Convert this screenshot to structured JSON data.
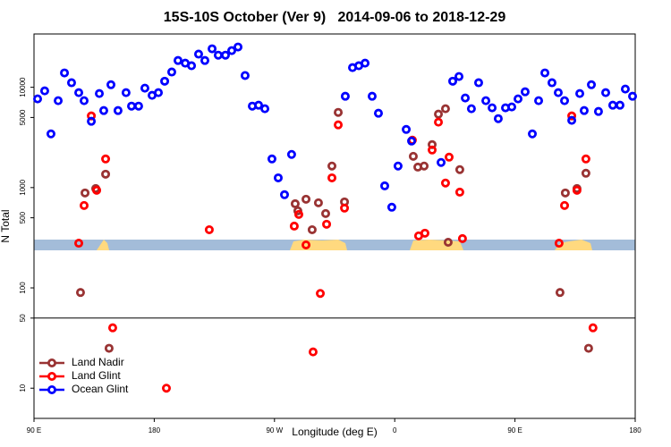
{
  "chart_data": {
    "type": "scatter",
    "title": "15S-10S October (Ver 9)   2014-09-06 to 2018-12-29",
    "xlabel": "Longitude (deg E)",
    "ylabel": "N Total",
    "xlim": [
      90,
      540
    ],
    "xticks": [
      {
        "value": 90,
        "label": "90 E"
      },
      180,
      {
        "value": 270,
        "label": "90 W"
      },
      {
        "value": 360,
        "label": "0"
      },
      {
        "value": 450,
        "label": "90 E"
      },
      {
        "value": 540,
        "label": "180"
      }
    ],
    "ylim": [
      5,
      34000
    ],
    "yscale": "log",
    "yticks": [
      10,
      50,
      100,
      500,
      1000,
      5000,
      10000
    ],
    "hline": 50,
    "legend": "lower left",
    "series": [
      {
        "name": "Land Nadir",
        "color": "#993333",
        "x": [
          124.8,
          128.2,
          136.2,
          143.6,
          146.2,
          285.5,
          287.5,
          293.6,
          298.2,
          302.9,
          308.3,
          313.0,
          317.7,
          322.4,
          373.9,
          377.3,
          382.0,
          388.0,
          392.7,
          398.0,
          400.0,
          408.7,
          483.7,
          487.7,
          496.4,
          503.1,
          505.1
        ],
        "values": [
          90,
          884,
          979,
          1360,
          25,
          690,
          586,
          766,
          380,
          705,
          551,
          1640,
          5620,
          720,
          2050,
          1600,
          1640,
          2680,
          5400,
          6110,
          285,
          1510,
          90,
          884,
          979,
          1390,
          25
        ]
      },
      {
        "name": "Land Glint",
        "color": "#ff0000",
        "x": [
          123.5,
          127.5,
          132.9,
          136.9,
          143.6,
          148.9,
          189.1,
          221.2,
          284.8,
          288.2,
          293.6,
          298.9,
          304.3,
          309.0,
          313.0,
          317.7,
          322.4,
          373.2,
          377.9,
          382.6,
          388.0,
          392.7,
          398.0,
          400.7,
          408.7,
          410.7,
          483.0,
          487.1,
          492.5,
          496.4,
          503.1,
          508.4
        ],
        "values": [
          279,
          663,
          5180,
          940,
          1930,
          40,
          10,
          380,
          413,
          540,
          268,
          23,
          88,
          431,
          1250,
          4220,
          624,
          2970,
          330,
          351,
          2370,
          4490,
          1110,
          2010,
          901,
          310,
          279,
          663,
          5180,
          940,
          1930,
          40
        ]
      },
      {
        "name": "Ocean Glint",
        "color": "#0000ff",
        "x": [
          92.7,
          98.0,
          102.7,
          108.1,
          112.8,
          118.1,
          123.5,
          127.5,
          132.9,
          138.9,
          142.2,
          147.6,
          152.9,
          158.9,
          163.0,
          168.3,
          173.0,
          178.4,
          183.1,
          187.8,
          193.1,
          197.8,
          203.2,
          207.9,
          213.2,
          217.9,
          223.3,
          227.9,
          233.3,
          238.0,
          242.7,
          248.0,
          253.4,
          258.1,
          262.8,
          268.1,
          272.8,
          277.5,
          282.8,
          323.0,
          328.4,
          333.1,
          337.8,
          343.1,
          347.8,
          352.5,
          357.8,
          362.5,
          368.6,
          372.6,
          394.7,
          403.4,
          408.1,
          412.8,
          417.4,
          422.8,
          428.2,
          432.9,
          437.5,
          442.9,
          447.6,
          452.3,
          457.6,
          463.0,
          467.7,
          472.4,
          477.7,
          482.4,
          487.1,
          492.5,
          498.5,
          501.8,
          507.2,
          512.5,
          517.9,
          523.2,
          528.6,
          532.6,
          538.0
        ],
        "values": [
          7660,
          9210,
          3430,
          7350,
          13900,
          11100,
          8840,
          7350,
          4580,
          8660,
          5860,
          10600,
          5860,
          8840,
          6490,
          6490,
          9800,
          8310,
          8840,
          11500,
          14200,
          18500,
          17400,
          16400,
          21400,
          18500,
          24200,
          20900,
          20900,
          23200,
          25200,
          13100,
          6490,
          6630,
          6110,
          1930,
          1250,
          849,
          2140,
          8140,
          15700,
          16400,
          17400,
          8140,
          5510,
          1040,
          637,
          1640,
          3800,
          2910,
          1780,
          11500,
          12800,
          7820,
          6110,
          11100,
          7350,
          6240,
          4870,
          6240,
          6370,
          7660,
          9020,
          3430,
          7350,
          13900,
          11100,
          8840,
          7350,
          4680,
          8660,
          5860,
          10600,
          5740,
          8840,
          6630,
          6630,
          9600,
          8140
        ]
      }
    ]
  }
}
